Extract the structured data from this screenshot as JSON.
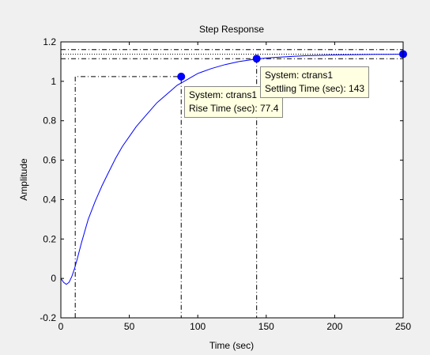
{
  "chart_data": {
    "type": "line",
    "title": "Step Response",
    "xlabel": "Time (sec)",
    "ylabel": "Amplitude",
    "xlim": [
      0,
      250
    ],
    "ylim": [
      -0.2,
      1.2
    ],
    "xticks": [
      0,
      50,
      100,
      150,
      200,
      250
    ],
    "xtick_labels": [
      "0",
      "50",
      "100",
      "150",
      "200",
      "250"
    ],
    "yticks": [
      -0.2,
      0,
      0.2,
      0.4,
      0.6,
      0.8,
      1,
      1.2
    ],
    "ytick_labels": [
      "-0.2",
      "0",
      "0.2",
      "0.4",
      "0.6",
      "0.8",
      "1",
      "1.2"
    ],
    "grid": false,
    "line_color": "#0000ff",
    "series": [
      {
        "x": [
          0,
          2,
          4,
          6,
          8,
          10,
          12,
          15,
          20,
          25,
          30,
          35,
          40,
          45,
          50,
          55,
          60,
          65,
          70,
          75,
          80,
          85,
          90,
          95,
          100,
          110,
          120,
          130,
          140,
          150,
          160,
          170,
          180,
          190,
          200,
          210,
          220,
          230,
          240,
          250
        ],
        "y": [
          0,
          -0.02,
          -0.03,
          -0.02,
          0.01,
          0.05,
          0.1,
          0.18,
          0.3,
          0.39,
          0.47,
          0.54,
          0.61,
          0.67,
          0.72,
          0.77,
          0.81,
          0.85,
          0.89,
          0.92,
          0.95,
          0.98,
          1.0,
          1.02,
          1.04,
          1.065,
          1.085,
          1.1,
          1.11,
          1.118,
          1.123,
          1.127,
          1.13,
          1.132,
          1.134,
          1.135,
          1.136,
          1.137,
          1.137,
          1.138
        ]
      }
    ],
    "steady_state": 1.138,
    "settling_band": [
      1.115,
      1.161
    ],
    "rise_start_time": 10.5,
    "rise_end_time": 87.9,
    "rise_level": 1.024,
    "markers": [
      {
        "x": 87.9,
        "y": 1.024,
        "label_lines": [
          "System: ctrans1",
          "Rise Time (sec): 77.4"
        ]
      },
      {
        "x": 143,
        "y": 1.115,
        "label_lines": [
          "System: ctrans1",
          "Settling Time (sec): 143"
        ]
      },
      {
        "x": 250,
        "y": 1.138,
        "label_lines": []
      }
    ]
  }
}
